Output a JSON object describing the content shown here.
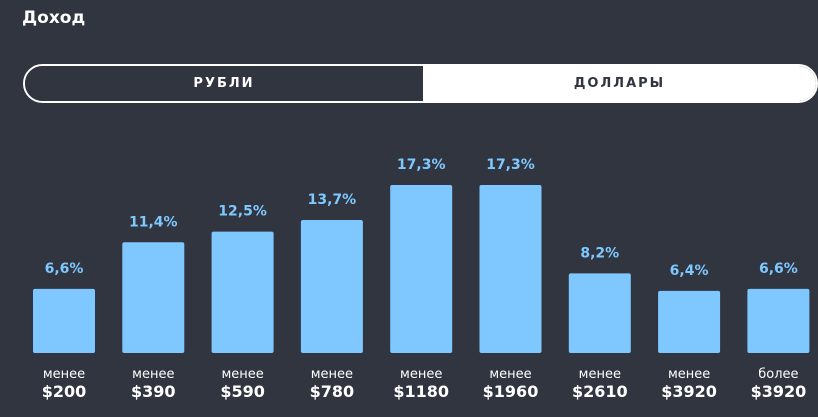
{
  "title": "Доход",
  "toggle": {
    "left_label": "РУБЛИ",
    "right_label": "ДОЛЛАРЫ"
  },
  "colors": {
    "background": "#313540",
    "bar": "#7fc8ff",
    "text": "#ffffff"
  },
  "chart_data": {
    "type": "bar",
    "categories": [
      [
        "менее",
        "$200"
      ],
      [
        "менее",
        "$390"
      ],
      [
        "менее",
        "$590"
      ],
      [
        "менее",
        "$780"
      ],
      [
        "менее",
        "$1180"
      ],
      [
        "менее",
        "$1960"
      ],
      [
        "менее",
        "$2610"
      ],
      [
        "менее",
        "$3920"
      ],
      [
        "более",
        "$3920"
      ]
    ],
    "values": [
      6.6,
      11.4,
      12.5,
      13.7,
      17.3,
      17.3,
      8.2,
      6.4,
      6.6
    ],
    "value_labels": [
      "6,6%",
      "11,4%",
      "12,5%",
      "13,7%",
      "17,3%",
      "17,3%",
      "8,2%",
      "6,4%",
      "6,6%"
    ],
    "grid": false
  }
}
